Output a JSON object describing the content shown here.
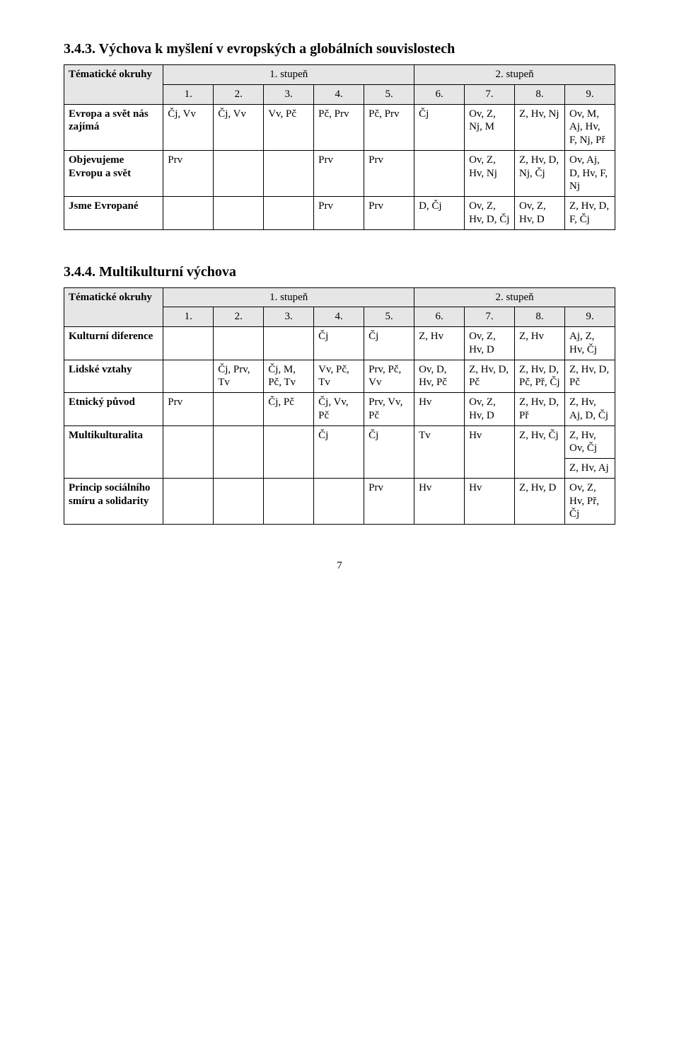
{
  "colors": {
    "header_bg": "#e6e6e6",
    "border": "#000000",
    "text": "#000000",
    "page_bg": "#ffffff"
  },
  "typography": {
    "title_fontsize_pt": 15,
    "body_fontsize_pt": 11,
    "font_family": "Times New Roman"
  },
  "section1": {
    "title": "3.4.3. Výchova k myšlení v evropských a globálních souvislostech",
    "topics_label": "Tématické okruhy",
    "stage1": "1. stupeň",
    "stage2": "2. stupeň",
    "cols": [
      "1.",
      "2.",
      "3.",
      "4.",
      "5.",
      "6.",
      "7.",
      "8.",
      "9."
    ],
    "rows": [
      {
        "label": "Evropa a svět nás zajímá",
        "c1": "Čj, Vv",
        "c2": "Čj, Vv",
        "c3": "Vv, Pč",
        "c4": "Pč, Prv",
        "c5": "Pč, Prv",
        "c6": "Čj",
        "c7": "Ov, Z, Nj, M",
        "c8": "Z, Hv, Nj",
        "c9": "Ov, M, Aj, Hv, F, Nj, Př"
      },
      {
        "label": "Objevujeme Evropu a svět",
        "c1": "Prv",
        "c2": "",
        "c3": "",
        "c4": "Prv",
        "c5": "Prv",
        "c6": "",
        "c7": "Ov, Z, Hv, Nj",
        "c8": "Z, Hv, D, Nj, Čj",
        "c9": "Ov, Aj, D, Hv, F, Nj"
      },
      {
        "label": "Jsme Evropané",
        "c1": "",
        "c2": "",
        "c3": "",
        "c4": "Prv",
        "c5": "Prv",
        "c6": "D, Čj",
        "c7": "Ov, Z, Hv, D, Čj",
        "c8": "Ov, Z, Hv, D",
        "c9": "Z, Hv, D, F, Čj"
      }
    ]
  },
  "section2": {
    "title": "3.4.4. Multikulturní výchova",
    "topics_label": "Tématické okruhy",
    "stage1": "1. stupeň",
    "stage2": "2. stupeň",
    "cols": [
      "1.",
      "2.",
      "3.",
      "4.",
      "5.",
      "6.",
      "7.",
      "8.",
      "9."
    ],
    "rows": [
      {
        "label": "Kulturní diference",
        "c1": "",
        "c2": "",
        "c3": "",
        "c4": "Čj",
        "c5": "Čj",
        "c6": "Z, Hv",
        "c7": "Ov, Z, Hv, D",
        "c8": "Z, Hv",
        "c9": "Aj, Z, Hv, Čj"
      },
      {
        "label": "Lidské vztahy",
        "c1": "",
        "c2": "Čj, Prv, Tv",
        "c3": "Čj, M, Pč, Tv",
        "c4": "Vv, Pč, Tv",
        "c5": "Prv, Pč, Vv",
        "c6": "Ov, D, Hv, Pč",
        "c7": "Z, Hv, D, Pč",
        "c8": "Z, Hv, D, Pč, Př, Čj",
        "c9": "Z, Hv, D, Pč"
      },
      {
        "label": "Etnický původ",
        "c1": "Prv",
        "c2": "",
        "c3": "Čj, Pč",
        "c4": "Čj, Vv, Pč",
        "c5": "Prv, Vv, Pč",
        "c6": "Hv",
        "c7": "Ov, Z, Hv, D",
        "c8": "Z, Hv, D, Př",
        "c9": "Z, Hv, Aj, D, Čj"
      },
      {
        "label": "Multikulturalita",
        "c1": "",
        "c2": "",
        "c3": "",
        "c4": "Čj",
        "c5": "Čj",
        "c6": "Tv",
        "c7": "Hv",
        "c8": "Z, Hv, Čj",
        "c9_a": "Z, Hv, Ov, Čj",
        "c9_b": "Z, Hv, Aj"
      },
      {
        "label": "Princip sociálního smíru a solidarity",
        "c1": "",
        "c2": "",
        "c3": "",
        "c4": "",
        "c5": "Prv",
        "c6": "Hv",
        "c7": "Hv",
        "c8": "Z, Hv, D",
        "c9": "Ov, Z, Hv, Př, Čj"
      }
    ]
  },
  "page_number": "7"
}
